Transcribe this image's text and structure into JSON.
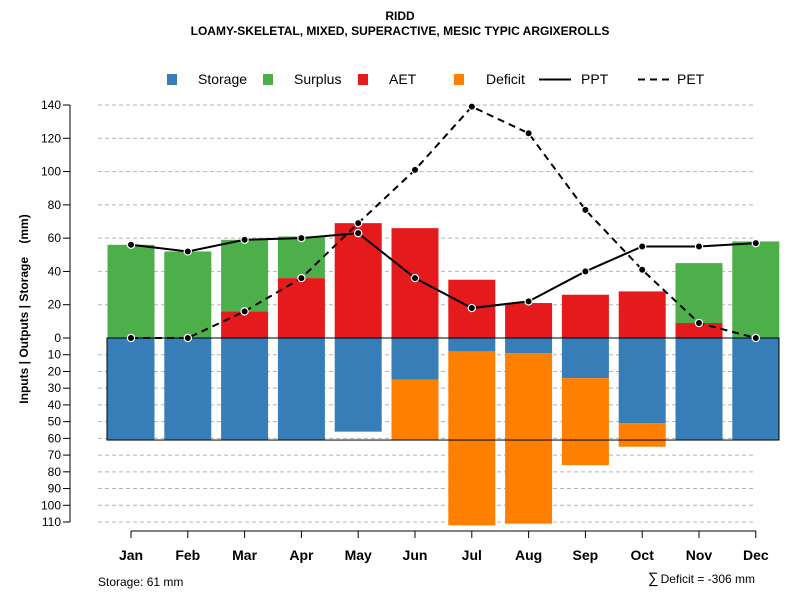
{
  "chart_data": {
    "type": "bar",
    "title": "RIDD",
    "subtitle": "LOAMY-SKELETAL, MIXED, SUPERACTIVE, MESIC TYPIC ARGIXEROLLS",
    "ylabel": "Inputs | Outputs | Storage    (mm)",
    "categories": [
      "Jan",
      "Feb",
      "Mar",
      "Apr",
      "May",
      "Jun",
      "Jul",
      "Aug",
      "Sep",
      "Oct",
      "Nov",
      "Dec"
    ],
    "ylim_upper": [
      0,
      140
    ],
    "ylim_lower": [
      0,
      110
    ],
    "yticks_upper": [
      0,
      20,
      40,
      60,
      80,
      100,
      120,
      140
    ],
    "yticks_lower": [
      10,
      20,
      30,
      40,
      50,
      60,
      70,
      80,
      90,
      100,
      110
    ],
    "legend": [
      {
        "label": "Storage",
        "color": "#377EB8",
        "kind": "box"
      },
      {
        "label": "Surplus",
        "color": "#4DAF4A",
        "kind": "box"
      },
      {
        "label": "AET",
        "color": "#E41A1C",
        "kind": "box"
      },
      {
        "label": "Deficit",
        "color": "#FF7F00",
        "kind": "box"
      },
      {
        "label": "PPT",
        "color": "#000000",
        "kind": "solid"
      },
      {
        "label": "PET",
        "color": "#000000",
        "kind": "dashed"
      }
    ],
    "series": [
      {
        "name": "AET",
        "color": "#E41A1C",
        "values": [
          0,
          0,
          16,
          36,
          69,
          66,
          35,
          21,
          26,
          28,
          9,
          0
        ]
      },
      {
        "name": "Surplus",
        "color": "#4DAF4A",
        "values": [
          56,
          52,
          43,
          25,
          0,
          0,
          0,
          0,
          0,
          0,
          36,
          58
        ]
      },
      {
        "name": "Storage",
        "color": "#377EB8",
        "values": [
          61,
          61,
          61,
          61,
          56,
          25,
          8,
          9,
          24,
          51,
          61,
          61
        ]
      },
      {
        "name": "Deficit",
        "color": "#FF7F00",
        "values": [
          0,
          0,
          0,
          0,
          0,
          36,
          104,
          102,
          52,
          14,
          0,
          0
        ]
      },
      {
        "name": "PPT",
        "color": "#000000",
        "values": [
          56,
          52,
          59,
          60,
          63,
          36,
          18,
          22,
          40,
          55,
          55,
          57
        ]
      },
      {
        "name": "PET",
        "color": "#000000",
        "values": [
          0,
          0,
          16,
          36,
          69,
          101,
          139,
          123,
          77,
          41,
          9,
          0
        ]
      }
    ],
    "storage_capacity": 61,
    "footer_storage": "Storage: 61 mm",
    "footer_deficit": "Deficit = -306 mm",
    "colors": {
      "grid": "#b4b4b4",
      "axis": "#000000"
    }
  }
}
